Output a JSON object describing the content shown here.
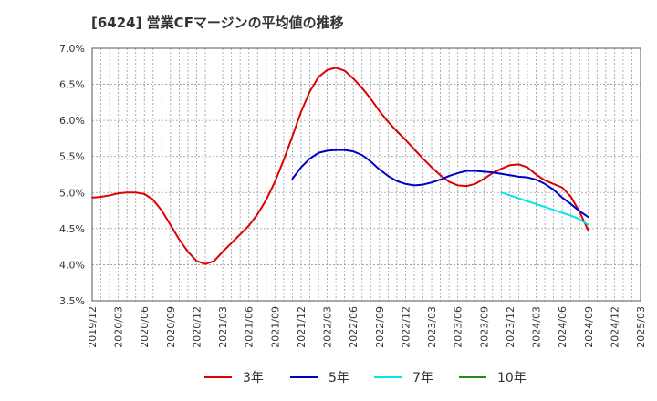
{
  "chart_data": {
    "type": "line",
    "title": "[6424]  営業CFマージンの平均値の推移",
    "xlabel": "",
    "ylabel": "",
    "ylim": [
      3.5,
      7.0
    ],
    "yticks": [
      "3.5%",
      "4.0%",
      "4.5%",
      "5.0%",
      "5.5%",
      "6.0%",
      "6.5%",
      "7.0%"
    ],
    "xticks": [
      "2019/12",
      "2020/03",
      "2020/06",
      "2020/09",
      "2020/12",
      "2021/03",
      "2021/06",
      "2021/09",
      "2021/12",
      "2022/03",
      "2022/06",
      "2022/09",
      "2022/12",
      "2023/03",
      "2023/06",
      "2023/09",
      "2023/12",
      "2024/03",
      "2024/06",
      "2024/09",
      "2024/12",
      "2025/03"
    ],
    "grid": true,
    "legend_position": "bottom",
    "series": [
      {
        "name": "3年",
        "color": "#dd0000",
        "points": [
          [
            "2019/12",
            4.93
          ],
          [
            "2020/01",
            4.94
          ],
          [
            "2020/02",
            4.96
          ],
          [
            "2020/03",
            4.99
          ],
          [
            "2020/04",
            5.0
          ],
          [
            "2020/05",
            5.0
          ],
          [
            "2020/06",
            4.98
          ],
          [
            "2020/07",
            4.9
          ],
          [
            "2020/08",
            4.75
          ],
          [
            "2020/09",
            4.55
          ],
          [
            "2020/10",
            4.35
          ],
          [
            "2020/11",
            4.18
          ],
          [
            "2020/12",
            4.05
          ],
          [
            "2021/01",
            4.01
          ],
          [
            "2021/02",
            4.05
          ],
          [
            "2021/03",
            4.18
          ],
          [
            "2021/04",
            4.3
          ],
          [
            "2021/05",
            4.42
          ],
          [
            "2021/06",
            4.54
          ],
          [
            "2021/07",
            4.7
          ],
          [
            "2021/08",
            4.9
          ],
          [
            "2021/09",
            5.15
          ],
          [
            "2021/10",
            5.45
          ],
          [
            "2021/11",
            5.78
          ],
          [
            "2021/12",
            6.12
          ],
          [
            "2022/01",
            6.4
          ],
          [
            "2022/02",
            6.6
          ],
          [
            "2022/03",
            6.7
          ],
          [
            "2022/04",
            6.73
          ],
          [
            "2022/05",
            6.69
          ],
          [
            "2022/06",
            6.58
          ],
          [
            "2022/07",
            6.45
          ],
          [
            "2022/08",
            6.3
          ],
          [
            "2022/09",
            6.13
          ],
          [
            "2022/10",
            5.98
          ],
          [
            "2022/11",
            5.85
          ],
          [
            "2022/12",
            5.73
          ],
          [
            "2023/01",
            5.6
          ],
          [
            "2023/02",
            5.47
          ],
          [
            "2023/03",
            5.35
          ],
          [
            "2023/04",
            5.24
          ],
          [
            "2023/05",
            5.15
          ],
          [
            "2023/06",
            5.1
          ],
          [
            "2023/07",
            5.09
          ],
          [
            "2023/08",
            5.12
          ],
          [
            "2023/09",
            5.19
          ],
          [
            "2023/10",
            5.27
          ],
          [
            "2023/11",
            5.33
          ],
          [
            "2023/12",
            5.38
          ],
          [
            "2024/01",
            5.39
          ],
          [
            "2024/02",
            5.35
          ],
          [
            "2024/03",
            5.25
          ],
          [
            "2024/04",
            5.17
          ],
          [
            "2024/05",
            5.12
          ],
          [
            "2024/06",
            5.07
          ],
          [
            "2024/07",
            4.94
          ],
          [
            "2024/08",
            4.73
          ],
          [
            "2024/09",
            4.47
          ]
        ]
      },
      {
        "name": "5年",
        "color": "#0000cc",
        "points": [
          [
            "2021/11",
            5.19
          ],
          [
            "2021/12",
            5.35
          ],
          [
            "2022/01",
            5.47
          ],
          [
            "2022/02",
            5.55
          ],
          [
            "2022/03",
            5.58
          ],
          [
            "2022/04",
            5.59
          ],
          [
            "2022/05",
            5.59
          ],
          [
            "2022/06",
            5.57
          ],
          [
            "2022/07",
            5.52
          ],
          [
            "2022/08",
            5.43
          ],
          [
            "2022/09",
            5.32
          ],
          [
            "2022/10",
            5.23
          ],
          [
            "2022/11",
            5.16
          ],
          [
            "2022/12",
            5.12
          ],
          [
            "2023/01",
            5.1
          ],
          [
            "2023/02",
            5.11
          ],
          [
            "2023/03",
            5.14
          ],
          [
            "2023/04",
            5.18
          ],
          [
            "2023/05",
            5.23
          ],
          [
            "2023/06",
            5.27
          ],
          [
            "2023/07",
            5.3
          ],
          [
            "2023/08",
            5.3
          ],
          [
            "2023/09",
            5.29
          ],
          [
            "2023/10",
            5.28
          ],
          [
            "2023/11",
            5.26
          ],
          [
            "2023/12",
            5.24
          ],
          [
            "2024/01",
            5.22
          ],
          [
            "2024/02",
            5.21
          ],
          [
            "2024/03",
            5.18
          ],
          [
            "2024/04",
            5.12
          ],
          [
            "2024/05",
            5.04
          ],
          [
            "2024/06",
            4.93
          ],
          [
            "2024/07",
            4.84
          ],
          [
            "2024/08",
            4.74
          ],
          [
            "2024/09",
            4.66
          ]
        ]
      },
      {
        "name": "7年",
        "color": "#00e5ee",
        "points": [
          [
            "2023/11",
            5.0
          ],
          [
            "2023/12",
            4.96
          ],
          [
            "2024/01",
            4.92
          ],
          [
            "2024/02",
            4.88
          ],
          [
            "2024/03",
            4.84
          ],
          [
            "2024/04",
            4.8
          ],
          [
            "2024/05",
            4.76
          ],
          [
            "2024/06",
            4.72
          ],
          [
            "2024/07",
            4.68
          ],
          [
            "2024/08",
            4.63
          ],
          [
            "2024/09",
            4.55
          ]
        ]
      },
      {
        "name": "10年",
        "color": "#228b22",
        "points": []
      }
    ]
  }
}
